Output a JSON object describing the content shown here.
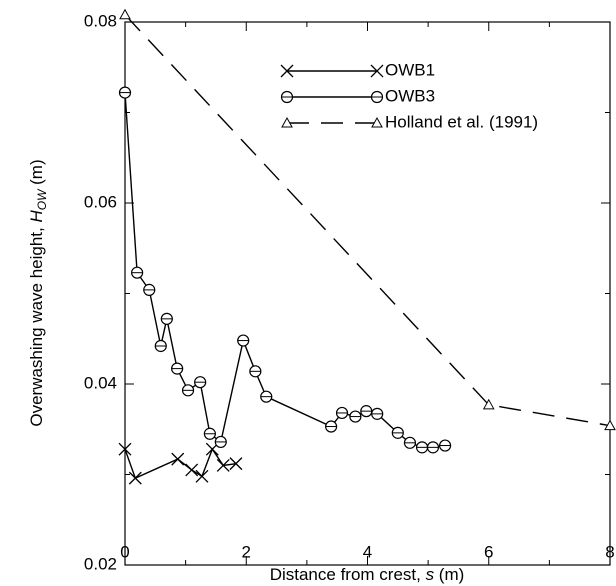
{
  "chart_data": {
    "type": "line",
    "x_label": {
      "text": "Distance from crest, ",
      "symbol": "s",
      "unit": " (m)"
    },
    "y_label": {
      "text": "Overwashing wave height, ",
      "symbol": "H",
      "subscript": "OW",
      "unit": " (m)"
    },
    "xlim": [
      0,
      8
    ],
    "ylim": [
      0.02,
      0.08
    ],
    "xticks": [
      0,
      2,
      4,
      6,
      8
    ],
    "yticks": [
      0.02,
      0.04,
      0.06,
      0.08
    ],
    "xminor": [
      1,
      3,
      5,
      7
    ],
    "yminor": [
      0.03,
      0.05,
      0.07
    ],
    "legend": "upper-center",
    "series": [
      {
        "name": "OWB1",
        "color": "#000000",
        "marker": "x",
        "dash": "solid",
        "x": [
          0,
          0.17,
          0.87,
          1.1,
          1.27,
          1.44,
          1.62,
          1.83
        ],
        "values": [
          0.0328,
          0.0296,
          0.0317,
          0.0305,
          0.0298,
          0.0328,
          0.031,
          0.0312
        ]
      },
      {
        "name": "OWB3",
        "color": "#000000",
        "marker": "circle",
        "dash": "solid",
        "x": [
          0,
          0.2,
          0.4,
          0.59,
          0.69,
          0.86,
          1.04,
          1.24,
          1.4,
          1.58,
          1.95,
          2.15,
          2.33,
          3.4,
          3.58,
          3.8,
          3.98,
          4.16,
          4.5,
          4.7,
          4.9,
          5.08,
          5.28
        ],
        "values": [
          0.0722,
          0.0523,
          0.0504,
          0.0442,
          0.0472,
          0.0417,
          0.0393,
          0.0402,
          0.0345,
          0.0336,
          0.0448,
          0.0414,
          0.0386,
          0.0353,
          0.0368,
          0.0364,
          0.037,
          0.0367,
          0.0346,
          0.0335,
          0.033,
          0.033,
          0.0332
        ]
      },
      {
        "name": "Holland et al. (1991)",
        "color": "#000000",
        "marker": "triangle",
        "dash": "dashed",
        "x": [
          0,
          6,
          8
        ],
        "values": [
          0.0808,
          0.0377,
          0.0354
        ]
      }
    ]
  }
}
